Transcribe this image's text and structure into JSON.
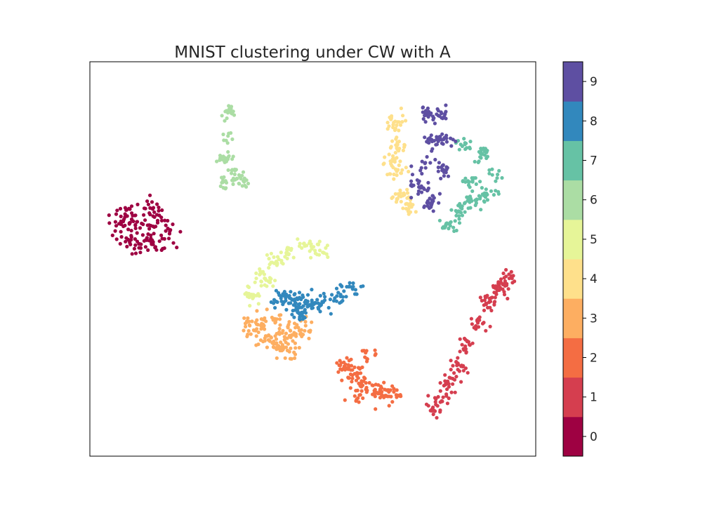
{
  "chart_data": {
    "type": "scatter",
    "title": "MNIST clustering under CW with A",
    "xlabel": "",
    "ylabel": "",
    "axes_ticks_visible": false,
    "grid": false,
    "colorbar": {
      "position": "right",
      "ticks": [
        "0",
        "1",
        "2",
        "3",
        "4",
        "5",
        "6",
        "7",
        "8",
        "9"
      ],
      "range": [
        -0.5,
        9.5
      ],
      "colors": [
        "#9e0142",
        "#d53e4f",
        "#f46d43",
        "#fdae61",
        "#fee08b",
        "#e6f598",
        "#abdda4",
        "#66c2a5",
        "#3288bd",
        "#5e4fa2"
      ]
    },
    "xlim": [
      0,
      100
    ],
    "ylim": [
      0,
      100
    ],
    "series": [
      {
        "label": "0",
        "color": "#9e0142",
        "clusters": [
          {
            "x": [
              6.5,
              9,
              11,
              13.5,
              15.5,
              17.5,
              13,
              10,
              8,
              7.5,
              12,
              16
            ],
            "y": [
              58,
              59.5,
              62,
              62.5,
              59.5,
              55.5,
              54,
              53.5,
              55,
              61.5,
              57,
              53
            ],
            "r": 3.2,
            "n": 150
          }
        ]
      },
      {
        "label": "1",
        "color": "#d53e4f",
        "clusters": [
          {
            "x": [
              94,
              92,
              89.5,
              87,
              84.5,
              82.5,
              80.5,
              78.5,
              77.5
            ],
            "y": [
              45,
              42.5,
              39,
              33.5,
              28,
              23,
              18.5,
              14.5,
              11.5
            ],
            "r": 2.4,
            "n": 170
          }
        ]
      },
      {
        "label": "2",
        "color": "#f46d43",
        "clusters": [
          {
            "x": [
              57,
              59,
              60.5,
              63.5,
              65.5,
              67.5,
              62,
              60
            ],
            "y": [
              23,
              21.5,
              19,
              17.5,
              16.5,
              15.5,
              25.5,
              15
            ],
            "r": 2.7,
            "n": 140
          }
        ]
      },
      {
        "label": "3",
        "color": "#fdae61",
        "clusters": [
          {
            "x": [
              37,
              39.5,
              42.5,
              45,
              47,
              41,
              44
            ],
            "y": [
              33,
              30,
              28.5,
              30,
              32.5,
              35,
              26.5
            ],
            "r": 3.0,
            "n": 150
          }
        ]
      },
      {
        "label": "4",
        "color": "#fee08b",
        "clusters": [
          {
            "x": [
              68.5,
              69,
              69.5,
              70,
              71.5,
              67.5
            ],
            "y": [
              84.5,
              78.5,
              72,
              66,
              63.5,
              75
            ],
            "r": 2.2,
            "n": 110
          }
        ]
      },
      {
        "label": "5",
        "color": "#e6f598",
        "clusters": [
          {
            "x": [
              36,
              38.5,
              41.5,
              45,
              48.5,
              51.5,
              40
            ],
            "y": [
              41,
              46,
              49.5,
              52,
              53,
              52,
              44
            ],
            "r": 2.3,
            "n": 110
          }
        ]
      },
      {
        "label": "6",
        "color": "#abdda4",
        "clusters": [
          {
            "x": [
              31.5,
              31,
              30.5,
              32.5,
              33.5,
              30
            ],
            "y": [
              87,
              81,
              75.5,
              72,
              69.5,
              69
            ],
            "r": 2.0,
            "n": 90
          }
        ]
      },
      {
        "label": "7",
        "color": "#66c2a5",
        "clusters": [
          {
            "x": [
              84,
              88,
              91,
              89,
              86,
              83,
              80,
              85
            ],
            "y": [
              79,
              76.5,
              71.5,
              66.5,
              64.5,
              62,
              58.5,
              69.5
            ],
            "r": 2.3,
            "n": 140
          }
        ]
      },
      {
        "label": "8",
        "color": "#3288bd",
        "clusters": [
          {
            "x": [
              43,
              46,
              49,
              52,
              55.5,
              58.5,
              47.5
            ],
            "y": [
              40,
              39.5,
              38.5,
              39,
              40.5,
              42,
              36
            ],
            "r": 2.5,
            "n": 150
          }
        ]
      },
      {
        "label": "9",
        "color": "#5e4fa2",
        "clusters": [
          {
            "x": [
              75.5,
              78.5,
              80,
              77,
              75,
              74,
              76.5,
              79
            ],
            "y": [
              87,
              86,
              80,
              80,
              74,
              68,
              64,
              72.5
            ],
            "r": 2.4,
            "n": 150
          }
        ]
      }
    ]
  }
}
